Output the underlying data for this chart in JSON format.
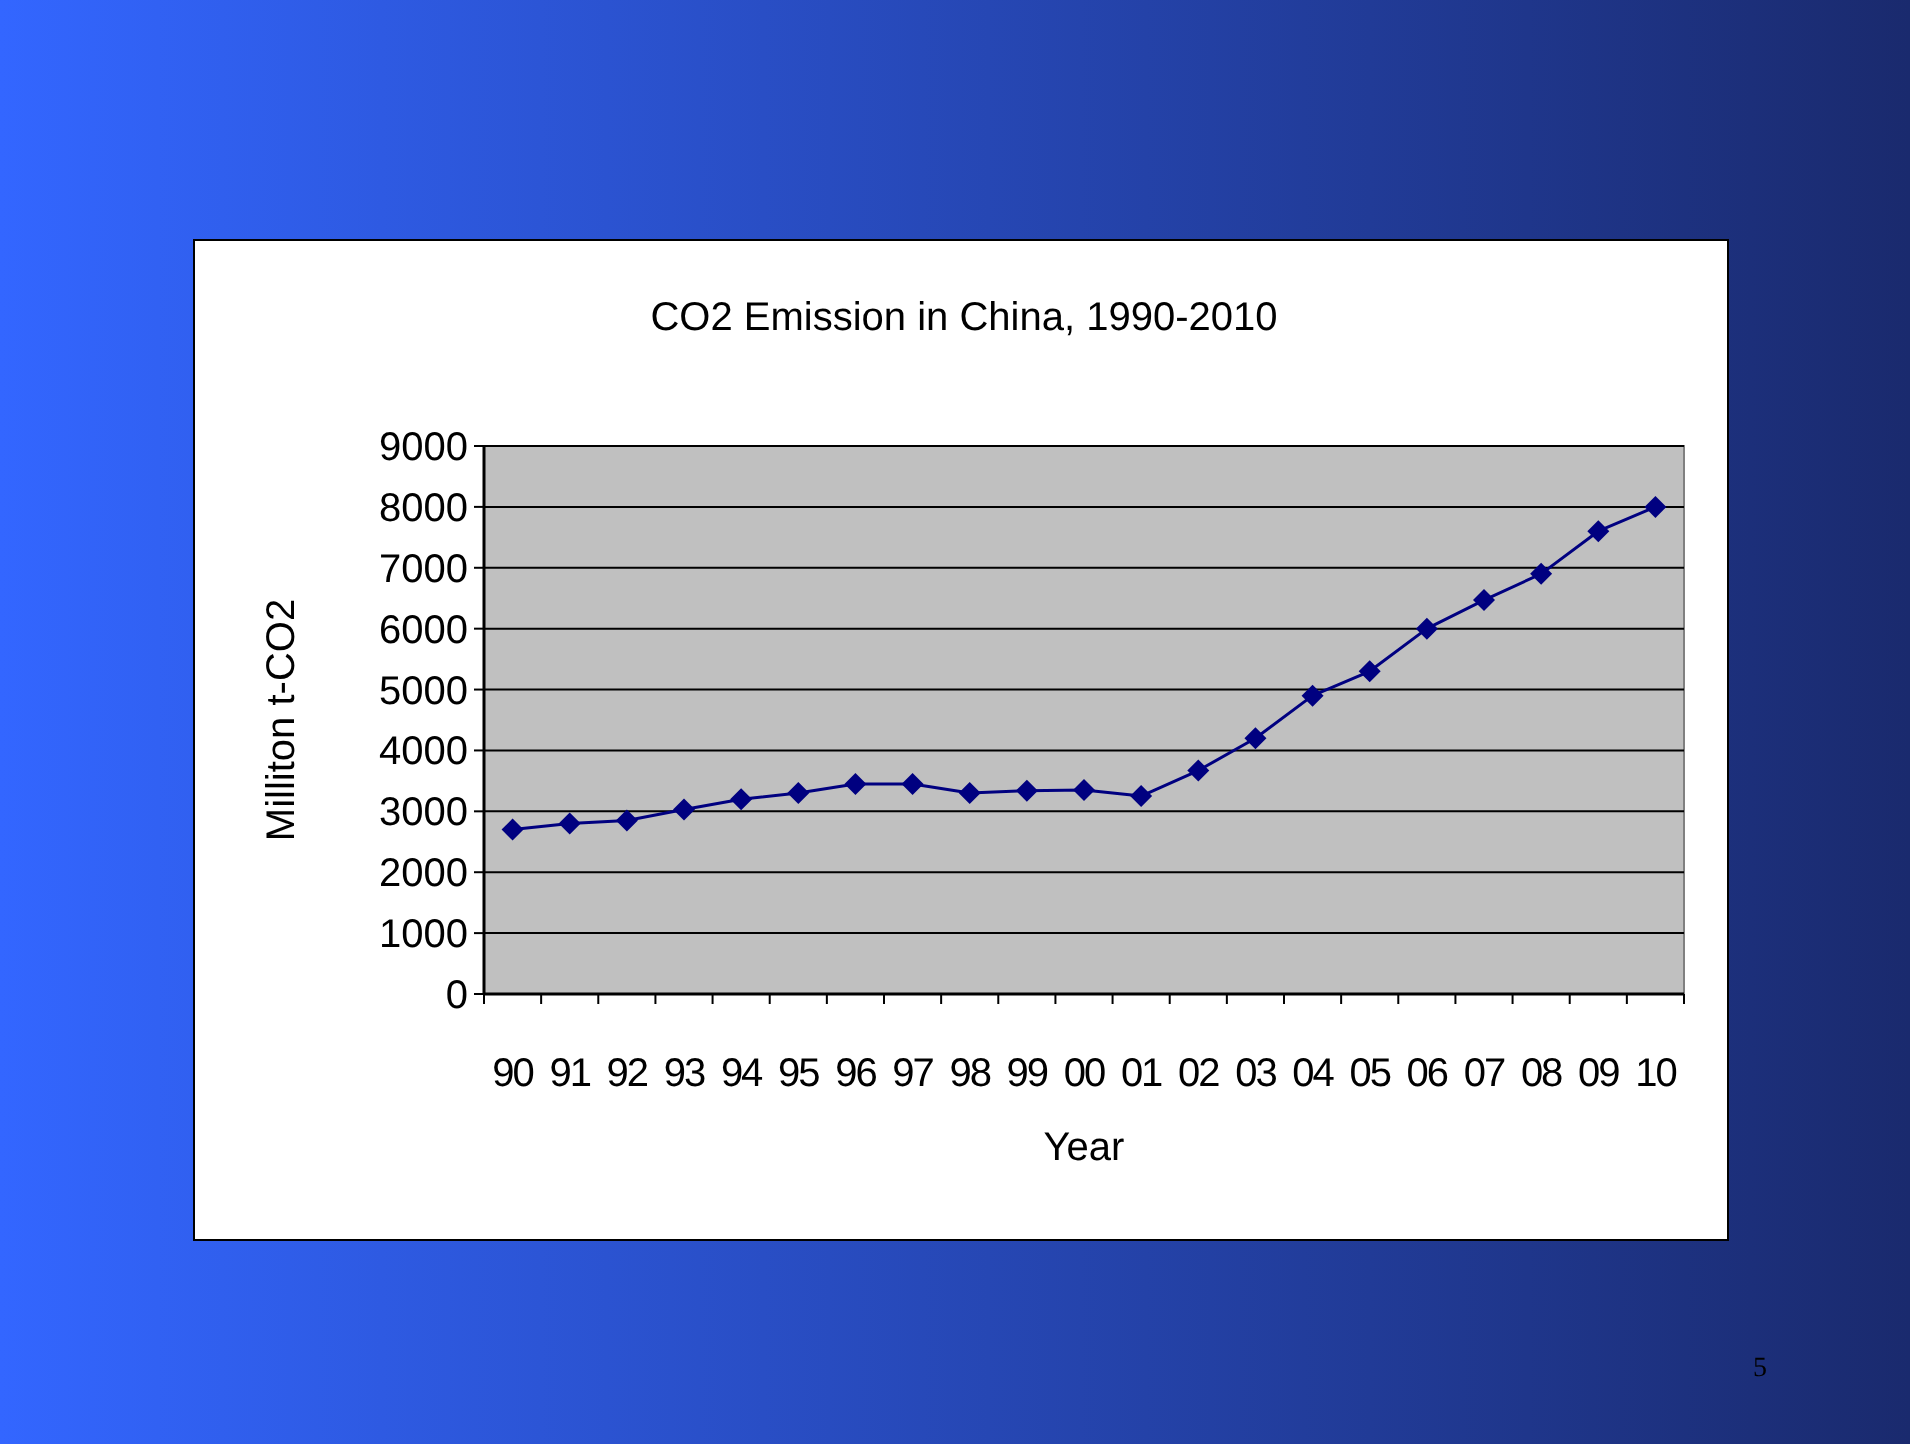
{
  "chart_data": {
    "type": "line",
    "title": "CO2 Emission in China, 1990-2010",
    "xlabel": "Year",
    "ylabel": "Milliton t-CO2",
    "categories": [
      "90",
      "91",
      "92",
      "93",
      "94",
      "95",
      "96",
      "97",
      "98",
      "99",
      "00",
      "01",
      "02",
      "03",
      "04",
      "05",
      "06",
      "07",
      "08",
      "09",
      "10"
    ],
    "series": [
      {
        "color": "#000080",
        "values": [
          2700,
          2800,
          2850,
          3030,
          3200,
          3300,
          3450,
          3450,
          3300,
          3340,
          3350,
          3250,
          3670,
          4200,
          4900,
          5300,
          6000,
          6470,
          6900,
          7600,
          8000
        ]
      }
    ],
    "ylim": [
      0,
      9000
    ],
    "yticks": [
      0,
      1000,
      2000,
      3000,
      4000,
      5000,
      6000,
      7000,
      8000,
      9000
    ],
    "grid": "y",
    "marker": "diamond",
    "line_style": "solid",
    "annotations": [
      "5"
    ]
  }
}
